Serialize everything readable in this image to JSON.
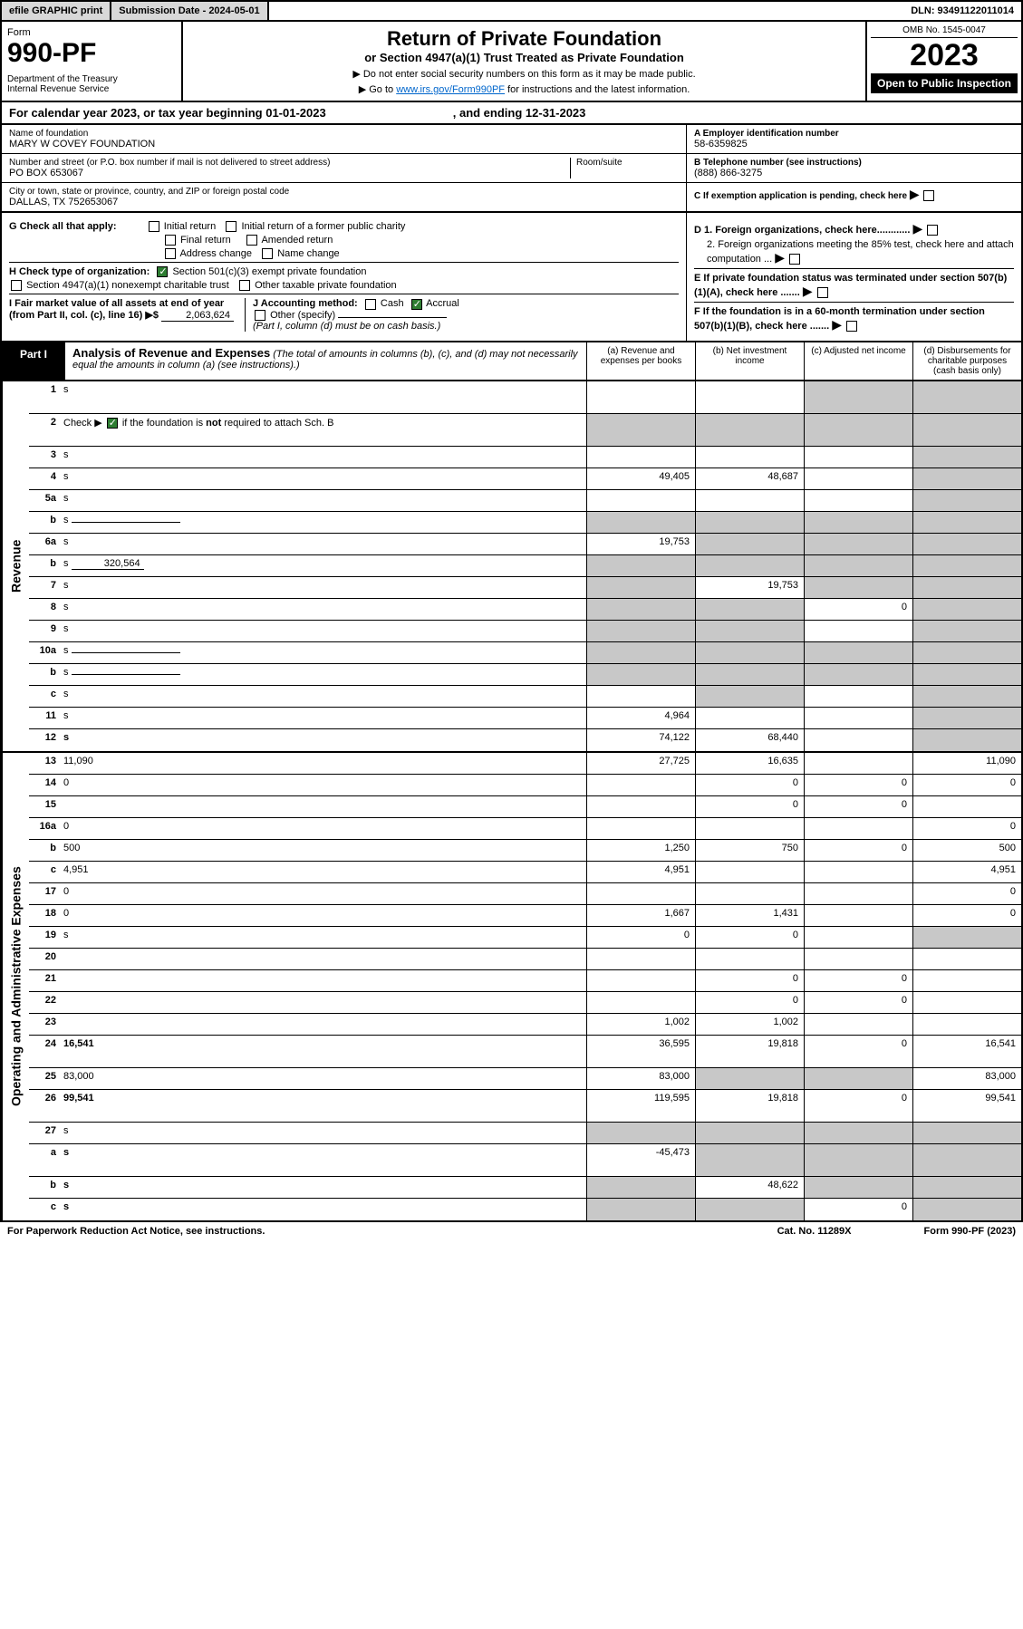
{
  "top_bar": {
    "efile": "efile GRAPHIC print",
    "submission": "Submission Date - 2024-05-01",
    "dln": "DLN: 93491122011014"
  },
  "header": {
    "form_label": "Form",
    "form_num": "990-PF",
    "dept": "Department of the Treasury\nInternal Revenue Service",
    "title": "Return of Private Foundation",
    "subtitle": "or Section 4947(a)(1) Trust Treated as Private Foundation",
    "note1": "▶ Do not enter social security numbers on this form as it may be made public.",
    "note2_pre": "▶ Go to ",
    "note2_link": "www.irs.gov/Form990PF",
    "note2_post": " for instructions and the latest information.",
    "omb": "OMB No. 1545-0047",
    "year": "2023",
    "open": "Open to Public Inspection"
  },
  "cal_year": {
    "text_a": "For calendar year 2023, or tax year beginning 01-01-2023",
    "text_b": ", and ending 12-31-2023"
  },
  "info": {
    "name_label": "Name of foundation",
    "name": "MARY W COVEY FOUNDATION",
    "addr_label": "Number and street (or P.O. box number if mail is not delivered to street address)",
    "addr": "PO BOX 653067",
    "room_label": "Room/suite",
    "city_label": "City or town, state or province, country, and ZIP or foreign postal code",
    "city": "DALLAS, TX  752653067",
    "ein_label": "A Employer identification number",
    "ein": "58-6359825",
    "phone_label": "B Telephone number (see instructions)",
    "phone": "(888) 866-3275",
    "c_label": "C If exemption application is pending, check here"
  },
  "checks": {
    "g_label": "G Check all that apply:",
    "g_opts": [
      "Initial return",
      "Initial return of a former public charity",
      "Final return",
      "Amended return",
      "Address change",
      "Name change"
    ],
    "h_label": "H Check type of organization:",
    "h_opts": [
      "Section 501(c)(3) exempt private foundation",
      "Section 4947(a)(1) nonexempt charitable trust",
      "Other taxable private foundation"
    ],
    "i_label": "I Fair market value of all assets at end of year (from Part II, col. (c), line 16) ▶$",
    "i_value": "2,063,624",
    "j_label": "J Accounting method:",
    "j_opts": [
      "Cash",
      "Accrual",
      "Other (specify)"
    ],
    "j_note": "(Part I, column (d) must be on cash basis.)",
    "d1": "D 1. Foreign organizations, check here............",
    "d2": "2. Foreign organizations meeting the 85% test, check here and attach computation ...",
    "e": "E  If private foundation status was terminated under section 507(b)(1)(A), check here .......",
    "f": "F  If the foundation is in a 60-month termination under section 507(b)(1)(B), check here .......",
    "arrow": "▶"
  },
  "part1": {
    "label": "Part I",
    "title": "Analysis of Revenue and Expenses",
    "note": "(The total of amounts in columns (b), (c), and (d) may not necessarily equal the amounts in column (a) (see instructions).)",
    "cols": {
      "a": "(a) Revenue and expenses per books",
      "b": "(b) Net investment income",
      "c": "(c) Adjusted net income",
      "d": "(d) Disbursements for charitable purposes (cash basis only)"
    }
  },
  "side_labels": {
    "revenue": "Revenue",
    "expenses": "Operating and Administrative Expenses"
  },
  "rows": [
    {
      "n": "1",
      "d": "s",
      "a": "",
      "b": "",
      "c": "s",
      "tall": true
    },
    {
      "n": "2",
      "d": "s",
      "a": "s",
      "b": "s",
      "c": "s",
      "tall": true,
      "checked": true
    },
    {
      "n": "3",
      "d": "s",
      "a": "",
      "b": "",
      "c": ""
    },
    {
      "n": "4",
      "d": "s",
      "a": "49,405",
      "b": "48,687",
      "c": ""
    },
    {
      "n": "5a",
      "d": "s",
      "a": "",
      "b": "",
      "c": ""
    },
    {
      "n": "b",
      "d": "s",
      "a": "s",
      "b": "s",
      "c": "s",
      "inline": true
    },
    {
      "n": "6a",
      "d": "s",
      "a": "19,753",
      "b": "s",
      "c": "s"
    },
    {
      "n": "b",
      "d": "s",
      "a": "s",
      "b": "s",
      "c": "s",
      "inline": true,
      "inline_val": "320,564"
    },
    {
      "n": "7",
      "d": "s",
      "a": "s",
      "b": "19,753",
      "c": "s"
    },
    {
      "n": "8",
      "d": "s",
      "a": "s",
      "b": "s",
      "c": "0"
    },
    {
      "n": "9",
      "d": "s",
      "a": "s",
      "b": "s",
      "c": ""
    },
    {
      "n": "10a",
      "d": "s",
      "a": "s",
      "b": "s",
      "c": "s",
      "inline": true
    },
    {
      "n": "b",
      "d": "s",
      "a": "s",
      "b": "s",
      "c": "s",
      "inline": true
    },
    {
      "n": "c",
      "d": "s",
      "a": "",
      "b": "s",
      "c": ""
    },
    {
      "n": "11",
      "d": "s",
      "a": "4,964",
      "b": "",
      "c": ""
    },
    {
      "n": "12",
      "d": "s",
      "a": "74,122",
      "b": "68,440",
      "c": "",
      "bold": true
    }
  ],
  "exp_rows": [
    {
      "n": "13",
      "d": "11,090",
      "a": "27,725",
      "b": "16,635",
      "c": ""
    },
    {
      "n": "14",
      "d": "0",
      "a": "",
      "b": "0",
      "c": "0"
    },
    {
      "n": "15",
      "d": "",
      "a": "",
      "b": "0",
      "c": "0"
    },
    {
      "n": "16a",
      "d": "0",
      "a": "",
      "b": "",
      "c": ""
    },
    {
      "n": "b",
      "d": "500",
      "a": "1,250",
      "b": "750",
      "c": "0"
    },
    {
      "n": "c",
      "d": "4,951",
      "a": "4,951",
      "b": "",
      "c": ""
    },
    {
      "n": "17",
      "d": "0",
      "a": "",
      "b": "",
      "c": ""
    },
    {
      "n": "18",
      "d": "0",
      "a": "1,667",
      "b": "1,431",
      "c": ""
    },
    {
      "n": "19",
      "d": "s",
      "a": "0",
      "b": "0",
      "c": ""
    },
    {
      "n": "20",
      "d": "",
      "a": "",
      "b": "",
      "c": ""
    },
    {
      "n": "21",
      "d": "",
      "a": "",
      "b": "0",
      "c": "0"
    },
    {
      "n": "22",
      "d": "",
      "a": "",
      "b": "0",
      "c": "0"
    },
    {
      "n": "23",
      "d": "",
      "a": "1,002",
      "b": "1,002",
      "c": ""
    },
    {
      "n": "24",
      "d": "16,541",
      "a": "36,595",
      "b": "19,818",
      "c": "0",
      "bold": true,
      "tall": true
    },
    {
      "n": "25",
      "d": "83,000",
      "a": "83,000",
      "b": "s",
      "c": "s"
    },
    {
      "n": "26",
      "d": "99,541",
      "a": "119,595",
      "b": "19,818",
      "c": "0",
      "bold": true,
      "tall": true
    },
    {
      "n": "27",
      "d": "s",
      "a": "s",
      "b": "s",
      "c": "s"
    },
    {
      "n": "a",
      "d": "s",
      "a": "-45,473",
      "b": "s",
      "c": "s",
      "bold": true,
      "tall": true
    },
    {
      "n": "b",
      "d": "s",
      "a": "s",
      "b": "48,622",
      "c": "s",
      "bold": true
    },
    {
      "n": "c",
      "d": "s",
      "a": "s",
      "b": "s",
      "c": "0",
      "bold": true
    }
  ],
  "footer": {
    "left": "For Paperwork Reduction Act Notice, see instructions.",
    "mid": "Cat. No. 11289X",
    "right": "Form 990-PF (2023)"
  },
  "colors": {
    "shaded": "#c8c8c8",
    "check_green": "#2e7d32",
    "link": "#0066cc"
  }
}
